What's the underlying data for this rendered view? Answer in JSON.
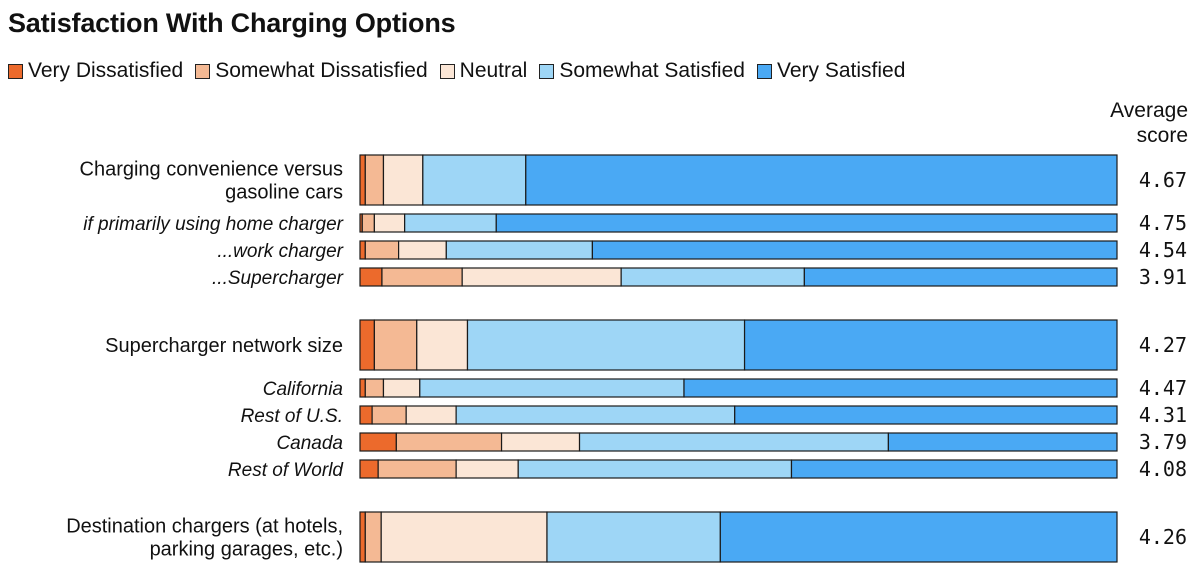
{
  "title": "Satisfaction With Charging Options",
  "score_header": [
    "Average",
    "score"
  ],
  "colors": {
    "Very Dissatisfied": "#ec6a2c",
    "Somewhat Dissatisfied": "#f4b994",
    "Neutral": "#fbe6d6",
    "Somewhat Satisfied": "#9ed6f6",
    "Very Satisfied": "#4aa9f4",
    "border": "#1a1a1a"
  },
  "chart_data": {
    "type": "bar",
    "orientation": "horizontal",
    "stacked": true,
    "normalized_percent": true,
    "title": "Satisfaction With Charging Options",
    "legend": [
      "Very Dissatisfied",
      "Somewhat Dissatisfied",
      "Neutral",
      "Somewhat Satisfied",
      "Very Satisfied"
    ],
    "legend_position": "top-left",
    "grid": false,
    "xlim": [
      0,
      100
    ],
    "rows": [
      {
        "label": [
          "Charging convenience versus",
          "gasoline cars"
        ],
        "style": "main",
        "group": 0,
        "values": [
          0.7,
          2.4,
          5.2,
          13.6,
          78.1
        ],
        "score": "4.67"
      },
      {
        "label": [
          "if primarily using home charger"
        ],
        "style": "sub",
        "group": 0,
        "values": [
          0.3,
          1.6,
          4.0,
          12.1,
          82.0
        ],
        "score": "4.75"
      },
      {
        "label": [
          "...work charger"
        ],
        "style": "sub",
        "group": 0,
        "values": [
          0.7,
          4.4,
          6.3,
          19.3,
          69.3
        ],
        "score": "4.54"
      },
      {
        "label": [
          "...Supercharger"
        ],
        "style": "sub",
        "group": 0,
        "values": [
          2.9,
          10.6,
          21.0,
          24.2,
          41.3
        ],
        "score": "3.91"
      },
      {
        "label": [
          "Supercharger network size"
        ],
        "style": "main",
        "group": 1,
        "values": [
          1.9,
          5.6,
          6.7,
          36.6,
          49.2
        ],
        "score": "4.27"
      },
      {
        "label": [
          "California"
        ],
        "style": "sub",
        "group": 1,
        "values": [
          0.7,
          2.4,
          4.8,
          34.9,
          57.2
        ],
        "score": "4.47"
      },
      {
        "label": [
          "Rest of U.S."
        ],
        "style": "sub",
        "group": 1,
        "values": [
          1.6,
          4.5,
          6.6,
          36.8,
          50.5
        ],
        "score": "4.31"
      },
      {
        "label": [
          "Canada"
        ],
        "style": "sub",
        "group": 1,
        "values": [
          4.8,
          13.9,
          10.3,
          40.8,
          30.2
        ],
        "score": "3.79"
      },
      {
        "label": [
          "Rest of World"
        ],
        "style": "sub",
        "group": 1,
        "values": [
          2.4,
          10.3,
          8.2,
          36.1,
          43.0
        ],
        "score": "4.08"
      },
      {
        "label": [
          "Destination chargers (at hotels,",
          "parking garages, etc.)"
        ],
        "style": "main",
        "group": 2,
        "values": [
          0.7,
          2.1,
          21.9,
          22.9,
          52.4
        ],
        "score": "4.26"
      }
    ]
  }
}
